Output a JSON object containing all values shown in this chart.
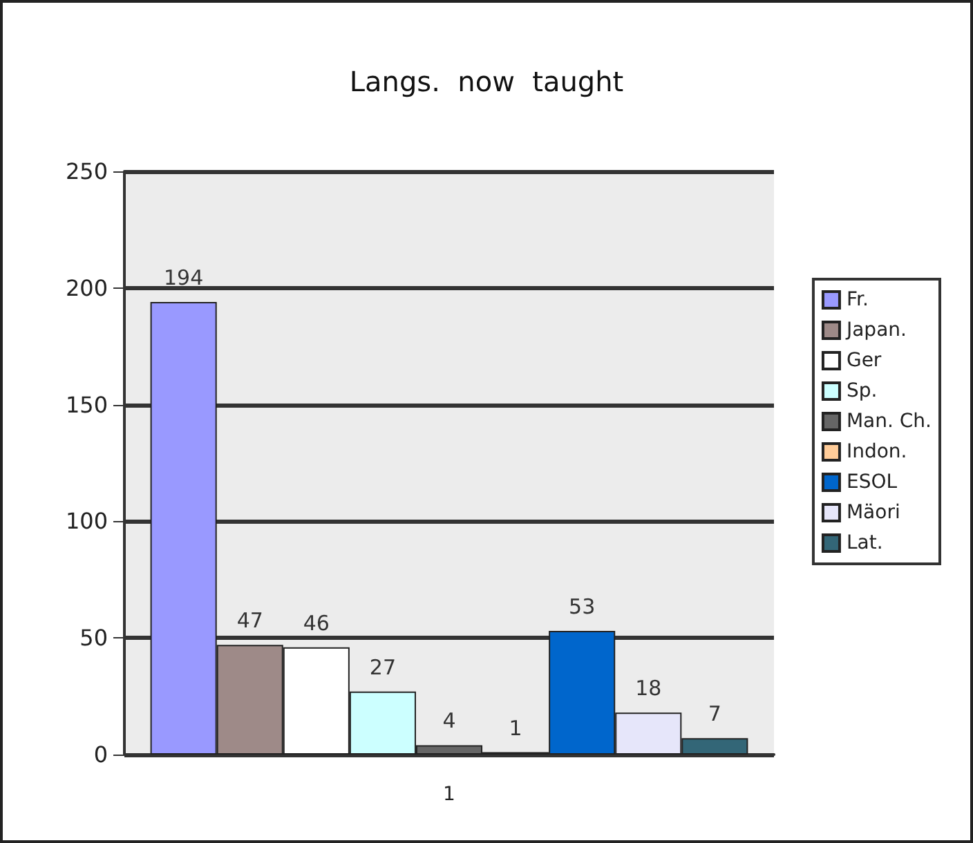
{
  "chart_data": {
    "type": "bar",
    "title": "Langs.  now  taught",
    "categories": [
      "1"
    ],
    "series": [
      {
        "name": "Fr.",
        "color": "#9999ff",
        "values": [
          194
        ]
      },
      {
        "name": "Japan.",
        "color": "#9e8a88",
        "values": [
          47
        ]
      },
      {
        "name": "Ger",
        "color": "#ffffff",
        "values": [
          46
        ]
      },
      {
        "name": "Sp.",
        "color": "#ccffff",
        "values": [
          27
        ]
      },
      {
        "name": "Man. Ch.",
        "color": "#666666",
        "values": [
          4
        ]
      },
      {
        "name": "Indon.",
        "color": "#ffcc99",
        "values": [
          1
        ]
      },
      {
        "name": "ESOL",
        "color": "#0066cc",
        "values": [
          53
        ]
      },
      {
        "name": "Mäori",
        "color": "#e6e6fa",
        "values": [
          18
        ]
      },
      {
        "name": "Lat.",
        "color": "#336677",
        "values": [
          7
        ]
      }
    ],
    "ylim": [
      0,
      250
    ],
    "yticks": [
      0,
      50,
      100,
      150,
      200,
      250
    ],
    "grid": "y",
    "legend": "right",
    "data_labels": true
  }
}
